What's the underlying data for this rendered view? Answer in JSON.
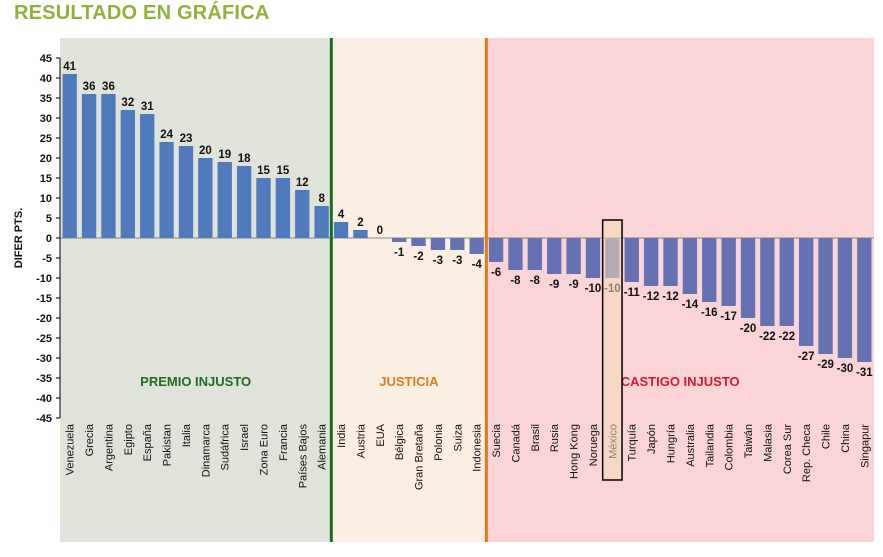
{
  "page_title": "RESULTADO EN GRÁFICA",
  "chart_data": {
    "type": "bar",
    "ylabel": "DIFER PTS.",
    "xlabel": "",
    "ylim": [
      -45,
      45
    ],
    "ytick_step": 5,
    "grid": false,
    "zones": [
      {
        "label": "PREMIO INJUSTO",
        "from": "Venezuela",
        "to": "Alemania",
        "fill": "#dfe3da",
        "label_color": "#1f6b22",
        "divider_color": "#1a6e1f"
      },
      {
        "label": "JUSTICIA",
        "from": "India",
        "to": "Indonesia",
        "fill": "#fbeee3",
        "label_color": "#e07a1c",
        "divider_color": "#e07a1c"
      },
      {
        "label": "CASTIGO INJUSTO",
        "from": "Suecia",
        "to": "Singapur",
        "fill": "#fad4d7",
        "label_color": "#d31c2b",
        "divider_color": ""
      }
    ],
    "highlight": "México",
    "colors": {
      "positive": "#4f7bbd",
      "negative": "#6671b4",
      "highlight_fill": "#f8d9b6",
      "highlight_border": "#000000"
    },
    "categories": [
      "Venezuela",
      "Grecia",
      "Argentina",
      "Egipto",
      "España",
      "Pakistan",
      "Italia",
      "Dinamarca",
      "Sudáfrica",
      "Israel",
      "Zona Euro",
      "Francia",
      "Países Bajos",
      "Alemania",
      "India",
      "Austria",
      "EUA",
      "Bélgica",
      "Gran Bretaña",
      "Polonia",
      "Suiza",
      "Indonesia",
      "Suecia",
      "Canadá",
      "Brasil",
      "Rusia",
      "Hong Kong",
      "Noruega",
      "México",
      "Turquía",
      "Japón",
      "Hungría",
      "Australia",
      "Tailandia",
      "Colombia",
      "Taiwán",
      "Malasia",
      "Corea Sur",
      "Rep. Checa",
      "Chile",
      "China",
      "Singapur"
    ],
    "values": [
      41,
      36,
      36,
      32,
      31,
      24,
      23,
      20,
      19,
      18,
      15,
      15,
      12,
      8,
      4,
      2,
      0,
      -1,
      -2,
      -3,
      -3,
      -4,
      -6,
      -8,
      -8,
      -9,
      -9,
      -10,
      -10,
      -11,
      -12,
      -12,
      -14,
      -16,
      -17,
      -20,
      -22,
      -22,
      -27,
      -29,
      -30,
      -31
    ]
  }
}
